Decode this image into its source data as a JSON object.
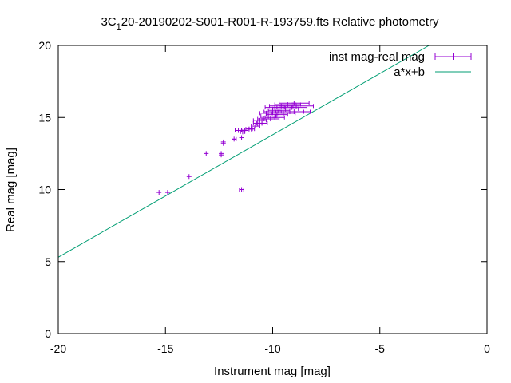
{
  "chart_data": {
    "type": "scatter",
    "title_main": "3C",
    "title_sub": "1",
    "title_rest": "20-20190202-S001-R001-R-193759.fts Relative photometry",
    "xlabel": "Instrument mag [mag]",
    "ylabel": "Real mag [mag]",
    "xlim": [
      -20,
      0
    ],
    "ylim": [
      0,
      20
    ],
    "xticks": [
      -20,
      -15,
      -10,
      -5,
      0
    ],
    "yticks": [
      0,
      5,
      10,
      15,
      20
    ],
    "xtick_labels": [
      "-20",
      "-15",
      "-10",
      "-5",
      "0"
    ],
    "ytick_labels": [
      "0",
      "5",
      "10",
      "15",
      "20"
    ],
    "grid": false,
    "legend_position": "top-right",
    "legend": {
      "points_label": "inst mag-real mag",
      "fit_label": "a*x+b"
    },
    "colors": {
      "points": "#9400d3",
      "fit": "#009e73",
      "axes": "#000000"
    },
    "fit_line": {
      "slope": 0.85,
      "intercept": 22.3
    },
    "points": [
      {
        "x": -15.3,
        "y": 9.8,
        "xerr": 0.05
      },
      {
        "x": -14.9,
        "y": 9.8,
        "xerr": 0.05
      },
      {
        "x": -13.9,
        "y": 10.9,
        "xerr": 0.05
      },
      {
        "x": -13.1,
        "y": 12.5,
        "xerr": 0.05
      },
      {
        "x": -12.4,
        "y": 12.4,
        "xerr": 0.05
      },
      {
        "x": -12.4,
        "y": 12.5,
        "xerr": 0.05
      },
      {
        "x": -12.3,
        "y": 13.2,
        "xerr": 0.05
      },
      {
        "x": -12.3,
        "y": 13.3,
        "xerr": 0.05
      },
      {
        "x": -11.8,
        "y": 13.5,
        "xerr": 0.1
      },
      {
        "x": -11.6,
        "y": 14.1,
        "xerr": 0.15
      },
      {
        "x": -11.45,
        "y": 13.6,
        "xerr": 0.05
      },
      {
        "x": -11.45,
        "y": 10.0,
        "xerr": 0.1
      },
      {
        "x": -11.4,
        "y": 14.0,
        "xerr": 0.1
      },
      {
        "x": -11.3,
        "y": 14.1,
        "xerr": 0.15
      },
      {
        "x": -11.1,
        "y": 14.2,
        "xerr": 0.15
      },
      {
        "x": -11.0,
        "y": 14.2,
        "xerr": 0.15
      },
      {
        "x": -10.8,
        "y": 14.4,
        "xerr": 0.2
      },
      {
        "x": -10.7,
        "y": 14.6,
        "xerr": 0.2
      },
      {
        "x": -10.6,
        "y": 14.8,
        "xerr": 0.3
      },
      {
        "x": -10.5,
        "y": 14.6,
        "xerr": 0.25
      },
      {
        "x": -10.4,
        "y": 14.9,
        "xerr": 0.3
      },
      {
        "x": -10.3,
        "y": 15.3,
        "xerr": 0.3
      },
      {
        "x": -10.2,
        "y": 15.1,
        "xerr": 0.35
      },
      {
        "x": -10.1,
        "y": 14.9,
        "xerr": 0.4
      },
      {
        "x": -10.0,
        "y": 15.4,
        "xerr": 0.4
      },
      {
        "x": -9.9,
        "y": 15.0,
        "xerr": 0.45
      },
      {
        "x": -9.9,
        "y": 15.7,
        "xerr": 0.45
      },
      {
        "x": -9.8,
        "y": 15.2,
        "xerr": 0.5
      },
      {
        "x": -9.7,
        "y": 15.5,
        "xerr": 0.5
      },
      {
        "x": -9.6,
        "y": 15.8,
        "xerr": 0.55
      },
      {
        "x": -9.5,
        "y": 15.3,
        "xerr": 0.55
      },
      {
        "x": -9.4,
        "y": 15.6,
        "xerr": 0.6
      },
      {
        "x": -9.3,
        "y": 15.9,
        "xerr": 0.6
      },
      {
        "x": -9.2,
        "y": 15.4,
        "xerr": 0.65
      },
      {
        "x": -9.1,
        "y": 15.7,
        "xerr": 0.7
      },
      {
        "x": -9.0,
        "y": 16.0,
        "xerr": 0.7
      },
      {
        "x": -9.0,
        "y": 15.4,
        "xerr": 0.75
      },
      {
        "x": -8.9,
        "y": 15.8,
        "xerr": 0.8
      }
    ]
  }
}
